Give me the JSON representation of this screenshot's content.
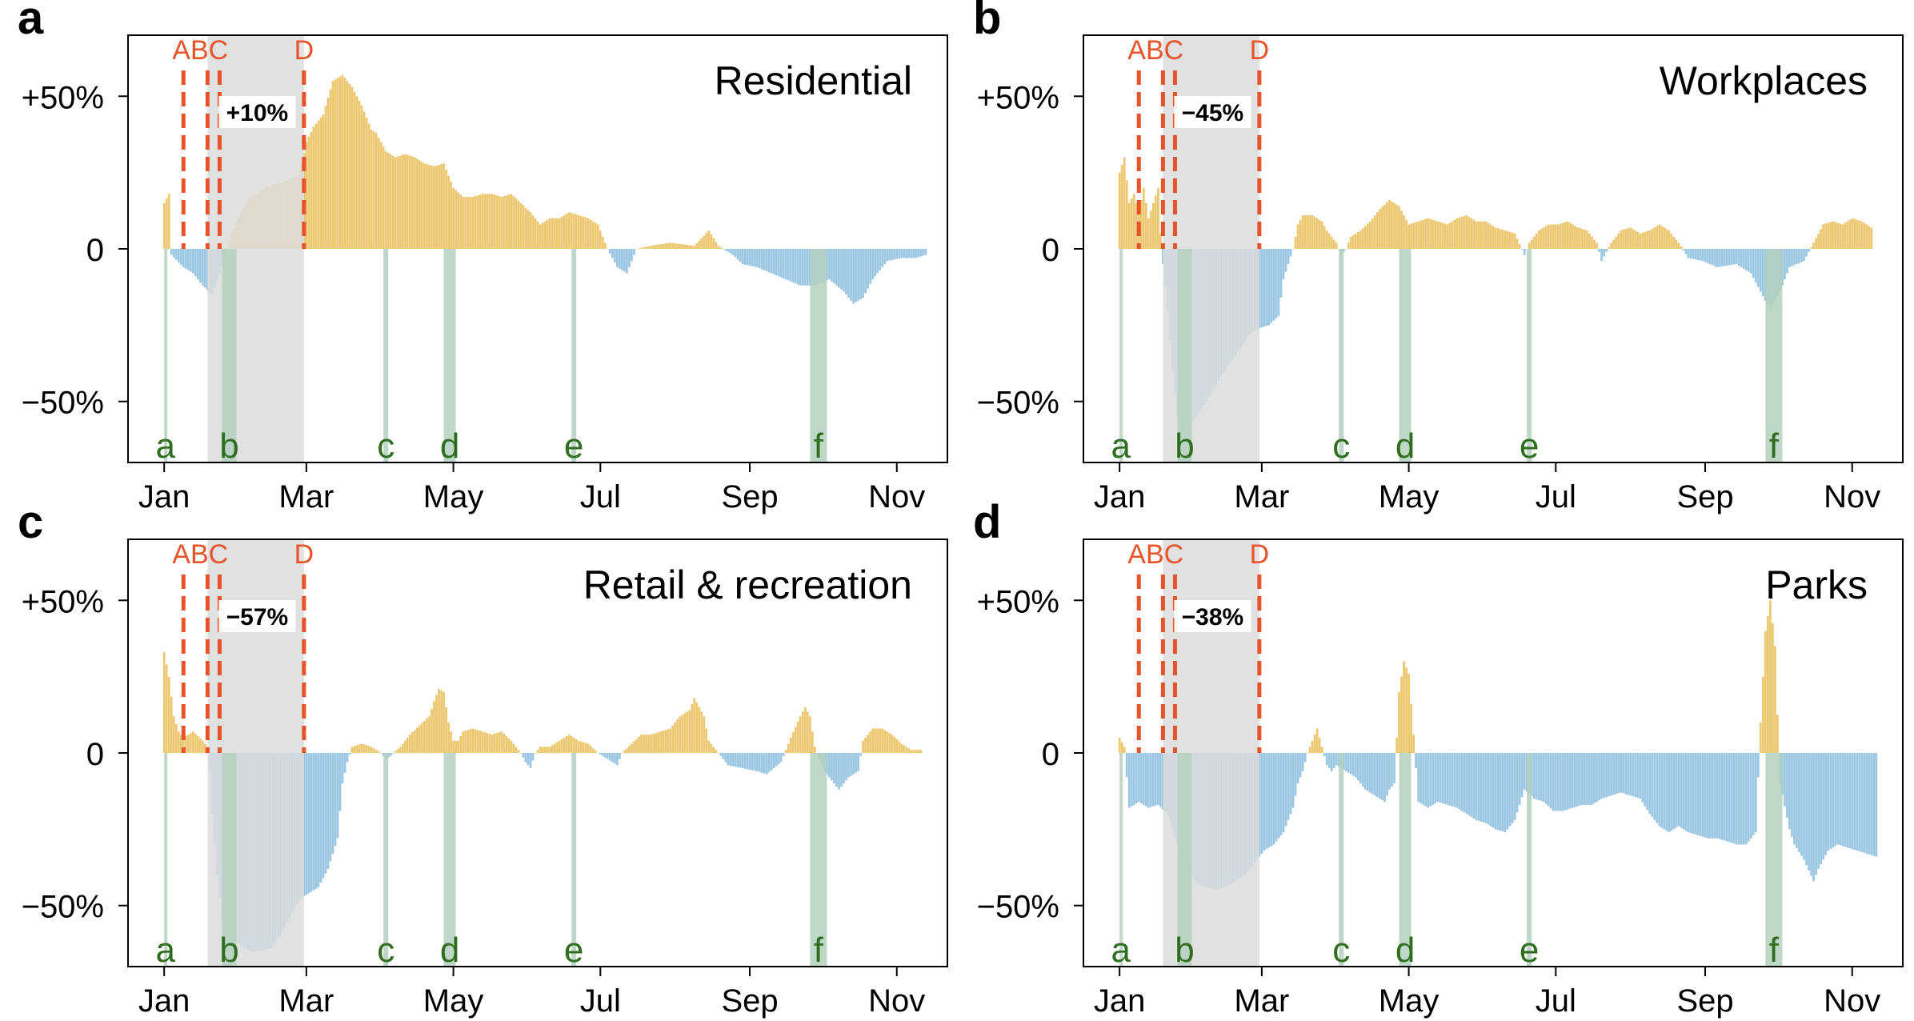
{
  "x_ticks": [
    "Jan",
    "Mar",
    "May",
    "Jul",
    "Sep",
    "Nov"
  ],
  "x_tick_days": [
    0,
    59,
    120,
    181,
    243,
    304
  ],
  "y_ticks": [
    {
      "value": 50,
      "label": "+50%"
    },
    {
      "value": 0,
      "label": "0"
    },
    {
      "value": -50,
      "label": "−50%"
    }
  ],
  "ylim": [
    -70,
    70
  ],
  "xlim": [
    -15,
    325
  ],
  "event_lines": [
    {
      "label": "A",
      "day": 8
    },
    {
      "label": "B",
      "day": 18
    },
    {
      "label": "C",
      "day": 23
    },
    {
      "label": "D",
      "day": 58
    }
  ],
  "event_label_text": "ABC",
  "event_label_d": "D",
  "shaded_period": {
    "start": 18,
    "end": 58
  },
  "marker_bands": [
    {
      "label": "a",
      "start": 0,
      "end": 1
    },
    {
      "label": "b",
      "start": 24,
      "end": 30
    },
    {
      "label": "c",
      "start": 91,
      "end": 93
    },
    {
      "label": "d",
      "start": 116,
      "end": 121
    },
    {
      "label": "e",
      "start": 169,
      "end": 171
    },
    {
      "label": "f",
      "start": 268,
      "end": 275
    }
  ],
  "colors": {
    "positive": "#ecc872",
    "negative": "#9cc7e3",
    "event_line": "#e8532a",
    "shade": "#dcdcdc",
    "band": "#b4d0c0",
    "band_label": "#2f6e1e",
    "axis": "#000000"
  },
  "chart_data": [
    {
      "type": "bar",
      "panel_letter": "a",
      "title": "Residential",
      "period_label": "+10%",
      "x_unit": "day of year",
      "ylim": [
        -70,
        70
      ],
      "y_ticks": [
        50,
        0,
        -50
      ],
      "keypoints": [
        [
          0,
          15
        ],
        [
          2,
          18
        ],
        [
          3,
          -2
        ],
        [
          8,
          -6
        ],
        [
          12,
          -8
        ],
        [
          16,
          -12
        ],
        [
          20,
          -15
        ],
        [
          24,
          -6
        ],
        [
          28,
          5
        ],
        [
          32,
          12
        ],
        [
          36,
          17
        ],
        [
          42,
          20
        ],
        [
          50,
          22
        ],
        [
          56,
          24
        ],
        [
          59,
          35
        ],
        [
          62,
          40
        ],
        [
          66,
          44
        ],
        [
          70,
          55
        ],
        [
          74,
          57
        ],
        [
          78,
          53
        ],
        [
          82,
          47
        ],
        [
          86,
          39
        ],
        [
          88,
          38
        ],
        [
          92,
          32
        ],
        [
          96,
          30
        ],
        [
          100,
          31
        ],
        [
          104,
          30
        ],
        [
          108,
          28
        ],
        [
          112,
          27
        ],
        [
          116,
          28
        ],
        [
          120,
          20
        ],
        [
          124,
          17
        ],
        [
          128,
          17
        ],
        [
          132,
          18
        ],
        [
          136,
          18
        ],
        [
          140,
          17
        ],
        [
          144,
          18
        ],
        [
          148,
          15
        ],
        [
          152,
          12
        ],
        [
          156,
          8
        ],
        [
          160,
          10
        ],
        [
          164,
          10
        ],
        [
          168,
          12
        ],
        [
          172,
          11
        ],
        [
          176,
          10
        ],
        [
          180,
          8
        ],
        [
          184,
          0
        ],
        [
          188,
          -6
        ],
        [
          192,
          -8
        ],
        [
          196,
          0
        ],
        [
          202,
          1
        ],
        [
          210,
          2
        ],
        [
          220,
          1
        ],
        [
          226,
          6
        ],
        [
          230,
          1
        ],
        [
          236,
          -2
        ],
        [
          240,
          -5
        ],
        [
          246,
          -6
        ],
        [
          252,
          -8
        ],
        [
          258,
          -10
        ],
        [
          264,
          -12
        ],
        [
          270,
          -12
        ],
        [
          276,
          -10
        ],
        [
          282,
          -14
        ],
        [
          286,
          -18
        ],
        [
          290,
          -16
        ],
        [
          294,
          -10
        ],
        [
          300,
          -4
        ],
        [
          306,
          -3
        ],
        [
          312,
          -3
        ],
        [
          316,
          -2
        ]
      ]
    },
    {
      "type": "bar",
      "panel_letter": "b",
      "title": "Workplaces",
      "period_label": "−45%",
      "x_unit": "day of year",
      "ylim": [
        -70,
        70
      ],
      "y_ticks": [
        50,
        0,
        -50
      ],
      "keypoints": [
        [
          0,
          25
        ],
        [
          2,
          30
        ],
        [
          4,
          15
        ],
        [
          6,
          18
        ],
        [
          8,
          12
        ],
        [
          10,
          20
        ],
        [
          12,
          10
        ],
        [
          14,
          15
        ],
        [
          16,
          20
        ],
        [
          17,
          5
        ],
        [
          18,
          -5
        ],
        [
          20,
          -20
        ],
        [
          22,
          -40
        ],
        [
          24,
          -55
        ],
        [
          26,
          -60
        ],
        [
          28,
          -58
        ],
        [
          32,
          -55
        ],
        [
          36,
          -50
        ],
        [
          42,
          -42
        ],
        [
          48,
          -35
        ],
        [
          54,
          -28
        ],
        [
          58,
          -26
        ],
        [
          62,
          -25
        ],
        [
          66,
          -22
        ],
        [
          68,
          -10
        ],
        [
          70,
          -5
        ],
        [
          72,
          0
        ],
        [
          74,
          8
        ],
        [
          76,
          11
        ],
        [
          80,
          11
        ],
        [
          84,
          9
        ],
        [
          86,
          6
        ],
        [
          88,
          4
        ],
        [
          90,
          2
        ],
        [
          92,
          -2
        ],
        [
          94,
          0
        ],
        [
          96,
          4
        ],
        [
          100,
          6
        ],
        [
          104,
          9
        ],
        [
          108,
          13
        ],
        [
          112,
          16
        ],
        [
          116,
          14
        ],
        [
          120,
          8
        ],
        [
          124,
          9
        ],
        [
          128,
          10
        ],
        [
          132,
          9
        ],
        [
          136,
          8
        ],
        [
          140,
          10
        ],
        [
          144,
          11
        ],
        [
          148,
          9
        ],
        [
          152,
          9
        ],
        [
          156,
          7
        ],
        [
          160,
          6
        ],
        [
          164,
          5
        ],
        [
          168,
          -2
        ],
        [
          170,
          2
        ],
        [
          174,
          6
        ],
        [
          178,
          8
        ],
        [
          182,
          8
        ],
        [
          186,
          9
        ],
        [
          190,
          7
        ],
        [
          194,
          6
        ],
        [
          198,
          2
        ],
        [
          200,
          -4
        ],
        [
          204,
          2
        ],
        [
          208,
          6
        ],
        [
          212,
          7
        ],
        [
          216,
          5
        ],
        [
          220,
          6
        ],
        [
          224,
          8
        ],
        [
          228,
          6
        ],
        [
          232,
          2
        ],
        [
          236,
          -3
        ],
        [
          242,
          -4
        ],
        [
          248,
          -6
        ],
        [
          256,
          -5
        ],
        [
          262,
          -8
        ],
        [
          266,
          -14
        ],
        [
          270,
          -20
        ],
        [
          274,
          -14
        ],
        [
          278,
          -6
        ],
        [
          284,
          -4
        ],
        [
          288,
          2
        ],
        [
          292,
          8
        ],
        [
          296,
          9
        ],
        [
          300,
          8
        ],
        [
          304,
          10
        ],
        [
          308,
          9
        ],
        [
          312,
          7
        ]
      ]
    },
    {
      "type": "bar",
      "panel_letter": "c",
      "title": "Retail & recreation",
      "period_label": "−57%",
      "x_unit": "day of year",
      "ylim": [
        -70,
        70
      ],
      "y_ticks": [
        50,
        0,
        -50
      ],
      "keypoints": [
        [
          0,
          33
        ],
        [
          2,
          25
        ],
        [
          4,
          12
        ],
        [
          6,
          7
        ],
        [
          8,
          5
        ],
        [
          12,
          7
        ],
        [
          16,
          4
        ],
        [
          18,
          2
        ],
        [
          19,
          -6
        ],
        [
          20,
          -20
        ],
        [
          22,
          -40
        ],
        [
          24,
          -55
        ],
        [
          28,
          -60
        ],
        [
          32,
          -63
        ],
        [
          36,
          -65
        ],
        [
          40,
          -65
        ],
        [
          44,
          -64
        ],
        [
          48,
          -60
        ],
        [
          52,
          -54
        ],
        [
          56,
          -48
        ],
        [
          60,
          -46
        ],
        [
          64,
          -44
        ],
        [
          68,
          -38
        ],
        [
          72,
          -28
        ],
        [
          74,
          -10
        ],
        [
          76,
          -3
        ],
        [
          78,
          2
        ],
        [
          82,
          3
        ],
        [
          86,
          2
        ],
        [
          90,
          0
        ],
        [
          92,
          -2
        ],
        [
          94,
          -1
        ],
        [
          98,
          2
        ],
        [
          102,
          6
        ],
        [
          106,
          9
        ],
        [
          110,
          12
        ],
        [
          112,
          17
        ],
        [
          114,
          21
        ],
        [
          116,
          20
        ],
        [
          118,
          10
        ],
        [
          120,
          4
        ],
        [
          122,
          4
        ],
        [
          124,
          7
        ],
        [
          128,
          8
        ],
        [
          132,
          7
        ],
        [
          136,
          6
        ],
        [
          140,
          7
        ],
        [
          144,
          4
        ],
        [
          148,
          0
        ],
        [
          150,
          -3
        ],
        [
          152,
          -5
        ],
        [
          154,
          0
        ],
        [
          156,
          2
        ],
        [
          160,
          2
        ],
        [
          164,
          4
        ],
        [
          168,
          6
        ],
        [
          172,
          4
        ],
        [
          176,
          3
        ],
        [
          180,
          0
        ],
        [
          184,
          -2
        ],
        [
          188,
          -4
        ],
        [
          190,
          0
        ],
        [
          194,
          3
        ],
        [
          198,
          6
        ],
        [
          202,
          6
        ],
        [
          206,
          7
        ],
        [
          210,
          8
        ],
        [
          214,
          12
        ],
        [
          218,
          14
        ],
        [
          220,
          18
        ],
        [
          224,
          12
        ],
        [
          226,
          4
        ],
        [
          230,
          0
        ],
        [
          234,
          -4
        ],
        [
          240,
          -5
        ],
        [
          246,
          -6
        ],
        [
          250,
          -7
        ],
        [
          256,
          -3
        ],
        [
          260,
          5
        ],
        [
          264,
          12
        ],
        [
          266,
          15
        ],
        [
          268,
          12
        ],
        [
          270,
          2
        ],
        [
          274,
          -6
        ],
        [
          280,
          -12
        ],
        [
          284,
          -8
        ],
        [
          288,
          -6
        ],
        [
          290,
          4
        ],
        [
          294,
          8
        ],
        [
          298,
          8
        ],
        [
          302,
          6
        ],
        [
          306,
          3
        ],
        [
          310,
          1
        ],
        [
          314,
          1
        ]
      ]
    },
    {
      "type": "bar",
      "panel_letter": "d",
      "title": "Parks",
      "period_label": "−38%",
      "x_unit": "day of year",
      "ylim": [
        -70,
        70
      ],
      "y_ticks": [
        50,
        0,
        -50
      ],
      "keypoints": [
        [
          0,
          5
        ],
        [
          2,
          2
        ],
        [
          4,
          -18
        ],
        [
          8,
          -16
        ],
        [
          12,
          -18
        ],
        [
          16,
          -17
        ],
        [
          20,
          -20
        ],
        [
          24,
          -30
        ],
        [
          28,
          -38
        ],
        [
          32,
          -43
        ],
        [
          36,
          -44
        ],
        [
          40,
          -45
        ],
        [
          44,
          -44
        ],
        [
          48,
          -42
        ],
        [
          52,
          -40
        ],
        [
          56,
          -36
        ],
        [
          60,
          -32
        ],
        [
          64,
          -30
        ],
        [
          68,
          -26
        ],
        [
          72,
          -18
        ],
        [
          74,
          -10
        ],
        [
          76,
          -6
        ],
        [
          78,
          0
        ],
        [
          80,
          4
        ],
        [
          82,
          8
        ],
        [
          84,
          2
        ],
        [
          86,
          -4
        ],
        [
          88,
          -6
        ],
        [
          90,
          -4
        ],
        [
          94,
          -6
        ],
        [
          98,
          -8
        ],
        [
          102,
          -12
        ],
        [
          106,
          -14
        ],
        [
          110,
          -16
        ],
        [
          112,
          -12
        ],
        [
          114,
          -10
        ],
        [
          116,
          20
        ],
        [
          118,
          30
        ],
        [
          120,
          26
        ],
        [
          122,
          6
        ],
        [
          124,
          -16
        ],
        [
          128,
          -18
        ],
        [
          132,
          -16
        ],
        [
          136,
          -17
        ],
        [
          140,
          -18
        ],
        [
          144,
          -20
        ],
        [
          148,
          -22
        ],
        [
          152,
          -23
        ],
        [
          156,
          -25
        ],
        [
          160,
          -26
        ],
        [
          164,
          -22
        ],
        [
          168,
          -12
        ],
        [
          172,
          -15
        ],
        [
          176,
          -16
        ],
        [
          180,
          -19
        ],
        [
          184,
          -19
        ],
        [
          188,
          -18
        ],
        [
          192,
          -17
        ],
        [
          196,
          -17
        ],
        [
          200,
          -15
        ],
        [
          204,
          -14
        ],
        [
          208,
          -13
        ],
        [
          212,
          -14
        ],
        [
          216,
          -15
        ],
        [
          220,
          -20
        ],
        [
          224,
          -24
        ],
        [
          228,
          -26
        ],
        [
          232,
          -24
        ],
        [
          236,
          -26
        ],
        [
          240,
          -27
        ],
        [
          244,
          -28
        ],
        [
          248,
          -28
        ],
        [
          252,
          -29
        ],
        [
          256,
          -30
        ],
        [
          260,
          -30
        ],
        [
          264,
          -26
        ],
        [
          266,
          10
        ],
        [
          268,
          40
        ],
        [
          270,
          50
        ],
        [
          272,
          35
        ],
        [
          274,
          -10
        ],
        [
          278,
          -25
        ],
        [
          280,
          -30
        ],
        [
          284,
          -35
        ],
        [
          288,
          -42
        ],
        [
          290,
          -38
        ],
        [
          294,
          -32
        ],
        [
          298,
          -30
        ],
        [
          302,
          -31
        ],
        [
          306,
          -32
        ],
        [
          310,
          -33
        ],
        [
          314,
          -34
        ]
      ]
    }
  ]
}
